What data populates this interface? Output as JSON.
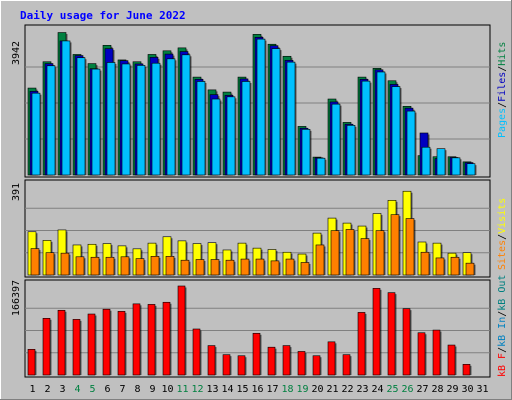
{
  "title": "Daily usage for June 2022",
  "colors": {
    "background": "#c0c0c0",
    "hits": "#008040",
    "files": "#0000c0",
    "pages": "#00c0ff",
    "visits": "#ffff00",
    "sites": "#ff8000",
    "kbin": "#0080c0",
    "kbout": "#008080",
    "kbf": "#ff0000",
    "title": "#0000ff"
  },
  "labels": {
    "top_max": "3942",
    "mid_max": "391",
    "bot_max": "166397",
    "top_legend": [
      {
        "text": "Pages",
        "color": "#00c0ff"
      },
      {
        "text": "Files",
        "color": "#0000c0"
      },
      {
        "text": "Hits",
        "color": "#008040"
      }
    ],
    "mid_legend": [
      {
        "text": "Sites",
        "color": "#ff8000"
      },
      {
        "text": "Visits",
        "color": "#ffff00"
      }
    ],
    "bot_legend": [
      {
        "text": "kB F",
        "color": "#ff0000"
      },
      {
        "text": "kB In",
        "color": "#0080c0"
      },
      {
        "text": "kB Out",
        "color": "#008080"
      }
    ]
  },
  "chart_data": {
    "type": "bar",
    "title": "Daily usage for June 2022",
    "categories": [
      "1",
      "2",
      "3",
      "4",
      "5",
      "6",
      "7",
      "8",
      "9",
      "10",
      "11",
      "12",
      "13",
      "14",
      "15",
      "16",
      "17",
      "18",
      "19",
      "20",
      "21",
      "22",
      "23",
      "24",
      "25",
      "26",
      "27",
      "28",
      "29",
      "30",
      "31"
    ],
    "weekend_days": [
      "4",
      "5",
      "11",
      "12",
      "18",
      "19",
      "25",
      "26"
    ],
    "panels": [
      {
        "name": "hits-files-pages",
        "ymax": 3942,
        "series": [
          {
            "name": "Hits",
            "values": [
              2380,
              3100,
              3900,
              3300,
              3050,
              3550,
              3150,
              3100,
              3300,
              3400,
              3480,
              2680,
              2330,
              2270,
              2680,
              3850,
              3580,
              3250,
              1330,
              490,
              2080,
              1440,
              2680,
              2920,
              2580,
              1880,
              530,
              500,
              500,
              360,
              0
            ]
          },
          {
            "name": "Files",
            "values": [
              2290,
              3050,
              3670,
              3270,
              2910,
              3460,
              3130,
              3040,
              3220,
              3310,
              3380,
              2620,
              2200,
              2180,
              2630,
              3770,
              3540,
              3140,
              1280,
              470,
              2000,
              1390,
              2620,
              2880,
              2480,
              1830,
              1150,
              450,
              480,
              340,
              0
            ]
          },
          {
            "name": "Pages",
            "values": [
              2240,
              2990,
              3670,
              3210,
              2900,
              3080,
              3040,
              3000,
              3060,
              3180,
              3290,
              2560,
              2080,
              2140,
              2560,
              3720,
              3460,
              3090,
              1250,
              460,
              1940,
              1360,
              2570,
              2820,
              2420,
              1750,
              760,
              720,
              470,
              310,
              0
            ]
          }
        ]
      },
      {
        "name": "visits-sites",
        "ymax": 391,
        "series": [
          {
            "name": "Visits",
            "values": [
              190,
              152,
              198,
              132,
              135,
              138,
              128,
              115,
              140,
              168,
              150,
              138,
              142,
              110,
              140,
              118,
              112,
              100,
              92,
              184,
              250,
              228,
              215,
              270,
              328,
              368,
              145,
              140,
              96,
              98,
              0
            ]
          },
          {
            "name": "Sites",
            "values": [
              116,
              98,
              96,
              80,
              78,
              78,
              80,
              72,
              82,
              82,
              65,
              68,
              68,
              65,
              70,
              70,
              62,
              70,
              55,
              132,
              195,
              200,
              160,
              195,
              265,
              248,
              100,
              75,
              78,
              52,
              0
            ]
          }
        ]
      },
      {
        "name": "kb",
        "ymax": 166397,
        "series": [
          {
            "name": "kB F",
            "values": [
              48000,
              106000,
              121000,
              104000,
              114000,
              123000,
              119000,
              133000,
              132000,
              136000,
              166400,
              86000,
              55000,
              38000,
              36000,
              78000,
              52000,
              55000,
              44000,
              36000,
              62000,
              38000,
              117000,
              162000,
              154000,
              124000,
              79000,
              84000,
              56000,
              20000,
              0
            ]
          }
        ]
      }
    ]
  }
}
